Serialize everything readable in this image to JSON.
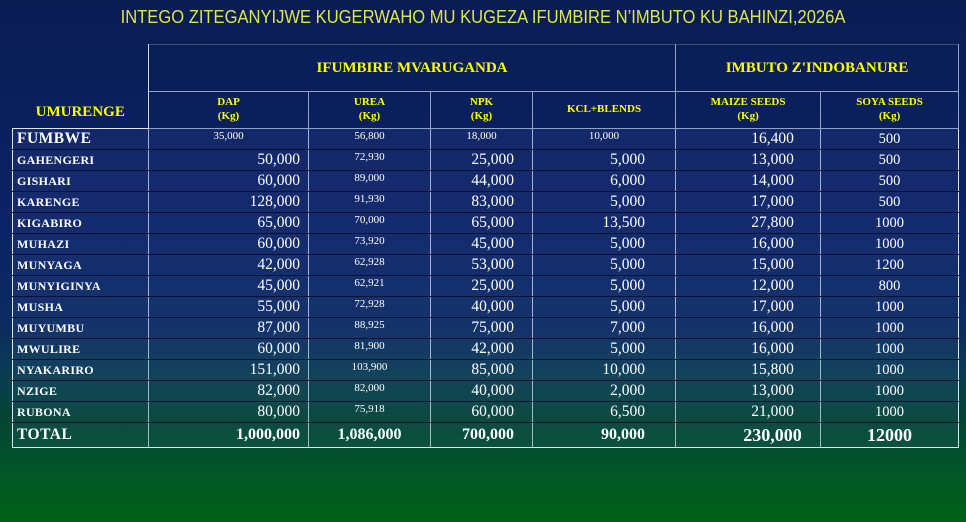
{
  "title": "INTEGO ZITEGANYIJWE KUGERWAHO MU KUGEZA IFUMBIRE N’IMBUTO KU BAHINZI,2026A",
  "colors": {
    "background_top": "#0c2366",
    "background_bottom": "#006113",
    "header_text": "#ffff00",
    "title_text": "#dde64b",
    "body_text": "#ffffff"
  },
  "table": {
    "corner_header": "UMURENGE",
    "group_headers": [
      "IFUMBIRE MVARUGANDA",
      "IMBUTO Z'INDOBANURE"
    ],
    "column_headers": [
      [
        "DAP",
        "(Kg)"
      ],
      [
        "UREA",
        "(Kg)"
      ],
      [
        "NPK",
        "(Kg)"
      ],
      [
        "KCL+BLENDS"
      ],
      [
        "MAIZE SEEDS",
        "(Kg)"
      ],
      [
        "SOYA SEEDS",
        "(Kg)"
      ]
    ],
    "rows": [
      {
        "name": "FUMBWE",
        "values": [
          "35,000",
          "56,800",
          "18,000",
          "10,000",
          "16,400",
          "500"
        ]
      },
      {
        "name": "GAHENGERI",
        "values": [
          "50,000",
          "72,930",
          "25,000",
          "5,000",
          "13,000",
          "500"
        ]
      },
      {
        "name": "GISHARI",
        "values": [
          "60,000",
          "89,000",
          "44,000",
          "6,000",
          "14,000",
          "500"
        ]
      },
      {
        "name": "KARENGE",
        "values": [
          "128,000",
          "91,930",
          "83,000",
          "5,000",
          "17,000",
          "500"
        ]
      },
      {
        "name": "KIGABIRO",
        "values": [
          "65,000",
          "70,000",
          "65,000",
          "13,500",
          "27,800",
          "1000"
        ]
      },
      {
        "name": "MUHAZI",
        "values": [
          "60,000",
          "73,920",
          "45,000",
          "5,000",
          "16,000",
          "1000"
        ]
      },
      {
        "name": "MUNYAGA",
        "values": [
          "42,000",
          "62,928",
          "53,000",
          "5,000",
          "15,000",
          "1200"
        ]
      },
      {
        "name": "MUNYIGINYA",
        "values": [
          "45,000",
          "62,921",
          "25,000",
          "5,000",
          "12,000",
          "800"
        ]
      },
      {
        "name": "MUSHA",
        "values": [
          "55,000",
          "72,928",
          "40,000",
          "5,000",
          "17,000",
          "1000"
        ]
      },
      {
        "name": "MUYUMBU",
        "values": [
          "87,000",
          "88,925",
          "75,000",
          "7,000",
          "16,000",
          "1000"
        ]
      },
      {
        "name": "MWULIRE",
        "values": [
          "60,000",
          "81,900",
          "42,000",
          "5,000",
          "16,000",
          "1000"
        ]
      },
      {
        "name": "NYAKARIRO",
        "values": [
          "151,000",
          "103,900",
          "85,000",
          "10,000",
          "15,800",
          "1000"
        ]
      },
      {
        "name": "NZIGE",
        "values": [
          "82,000",
          "82,000",
          "40,000",
          "2,000",
          "13,000",
          "1000"
        ]
      },
      {
        "name": "RUBONA",
        "values": [
          "80,000",
          "75,918",
          "60,000",
          "6,500",
          "21,000",
          "1000"
        ]
      }
    ],
    "total_row": {
      "name": "TOTAL",
      "values": [
        "1,000,000",
        "1,086,000",
        "700,000",
        "90,000",
        "230,000",
        "12000"
      ]
    }
  }
}
